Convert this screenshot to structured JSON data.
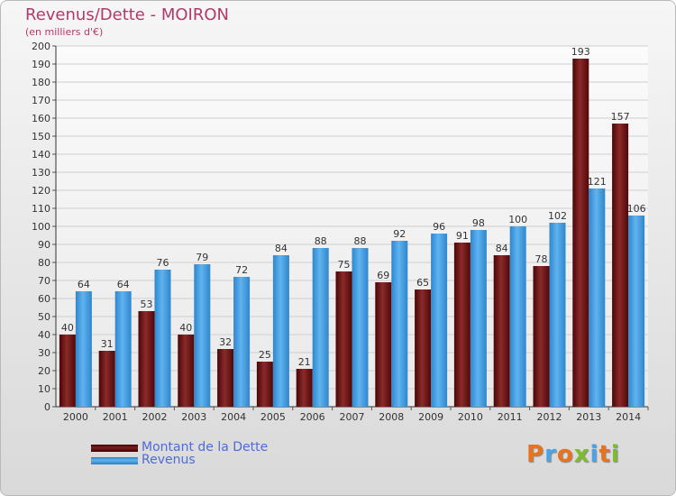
{
  "chart_data": {
    "type": "bar",
    "title": "Revenus/Dette - MOIRON",
    "subtitle": "(en milliers d'€)",
    "categories": [
      "2000",
      "2001",
      "2002",
      "2003",
      "2004",
      "2005",
      "2006",
      "2007",
      "2008",
      "2009",
      "2010",
      "2011",
      "2012",
      "2013",
      "2014"
    ],
    "series": [
      {
        "name": "Montant de la Dette",
        "values": [
          40,
          31,
          53,
          40,
          32,
          25,
          21,
          75,
          69,
          65,
          91,
          84,
          78,
          193,
          157
        ],
        "color": "#7a1e1e"
      },
      {
        "name": "Revenus",
        "values": [
          64,
          64,
          76,
          79,
          72,
          84,
          88,
          88,
          92,
          96,
          98,
          100,
          102,
          121,
          106
        ],
        "color": "#4aa3e6"
      }
    ],
    "ylim": [
      0,
      200
    ],
    "ytick_step": 10,
    "grid": true,
    "legend_position": "bottom-left"
  },
  "logo": {
    "text": "Proxiti",
    "colors": [
      "#e8731f",
      "#4aa3e6",
      "#e8731f",
      "#7dbb2f",
      "#4aa3e6",
      "#e8731f",
      "#7dbb2f"
    ]
  }
}
